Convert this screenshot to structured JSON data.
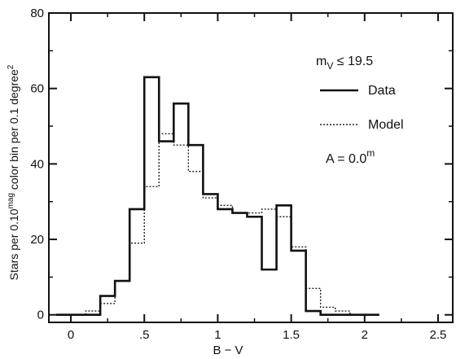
{
  "chart_data": {
    "type": "line",
    "title": "",
    "xlabel": "B − V",
    "ylabel": "Stars per 0.10^mag color bin per 0.1 degree^2",
    "ylabel_parts": {
      "p1": "Stars per 0.10",
      "sup1": "mag",
      "p2": " color bin per 0.1 degree",
      "sup2": "2"
    },
    "xlim": [
      -0.15,
      2.6
    ],
    "ylim": [
      -2,
      80
    ],
    "xticks": [
      0,
      0.5,
      1,
      1.5,
      2,
      2.5
    ],
    "xtick_labels": [
      "0",
      ".5",
      "1",
      "1.5",
      "2",
      "2.5"
    ],
    "yticks": [
      0,
      20,
      40,
      60,
      80
    ],
    "ytick_labels": [
      "0",
      "20",
      "40",
      "60",
      "80"
    ],
    "bin_edges": [
      -0.1,
      0.0,
      0.1,
      0.2,
      0.3,
      0.4,
      0.5,
      0.6,
      0.7,
      0.8,
      0.9,
      1.0,
      1.1,
      1.2,
      1.3,
      1.4,
      1.5,
      1.6,
      1.7,
      1.8,
      1.9,
      2.0,
      2.1
    ],
    "series": [
      {
        "name": "Data",
        "style": "solid",
        "values": [
          0,
          0,
          0,
          5,
          9,
          28,
          63,
          46,
          56,
          45,
          32,
          28,
          27,
          26,
          12,
          29,
          17,
          1,
          0,
          0,
          0,
          0
        ]
      },
      {
        "name": "Model",
        "style": "dotted",
        "values": [
          0,
          0,
          1,
          3,
          9,
          19,
          34,
          48,
          45,
          38,
          31,
          29,
          27,
          27,
          28,
          26,
          18,
          7,
          2,
          1,
          0,
          0
        ]
      }
    ],
    "annotations": {
      "mag_limit": {
        "prefix": "m",
        "sub": "V",
        "rest": " ≤ 19.5"
      },
      "extinction": {
        "prefix": "A = 0.0",
        "sup": "m"
      }
    },
    "legend": "upper-right"
  }
}
